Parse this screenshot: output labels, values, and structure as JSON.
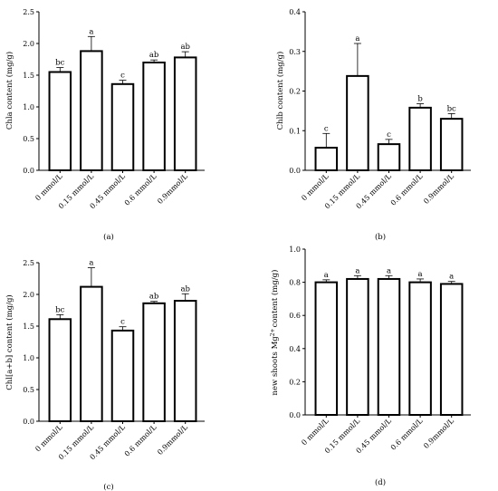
{
  "chart_data": [
    {
      "type": "bar",
      "panel_label": "(a)",
      "ylabel": "Chla content (mg/g)",
      "ylim": [
        0,
        2.5
      ],
      "yticks": [
        "0.0",
        "0.5",
        "1.0",
        "1.5",
        "2.0",
        "2.5"
      ],
      "categories": [
        "0 mmol/L",
        "0.15 mmol/L",
        "0.45 mmol/L",
        "0.6 mmol/L",
        "0.9mmol/L"
      ],
      "values": [
        1.55,
        1.88,
        1.36,
        1.7,
        1.78
      ],
      "errors": [
        0.07,
        0.23,
        0.06,
        0.04,
        0.09
      ],
      "significance": [
        "bc",
        "a",
        "c",
        "ab",
        "ab"
      ]
    },
    {
      "type": "bar",
      "panel_label": "(b)",
      "ylabel": "Chlb content  (mg/g)",
      "ylim": [
        0,
        0.4
      ],
      "yticks": [
        "0.0",
        "0.1",
        "0.2",
        "0.3",
        "0.4"
      ],
      "categories": [
        "0 mmol/L",
        "0.15 mmol/L",
        "0.45 mmol/L",
        "0.6 mmol/L",
        "0.9mmol/L"
      ],
      "values": [
        0.057,
        0.238,
        0.066,
        0.158,
        0.13
      ],
      "errors": [
        0.036,
        0.082,
        0.012,
        0.01,
        0.013
      ],
      "significance": [
        "c",
        "a",
        "c",
        "b",
        "bc"
      ]
    },
    {
      "type": "bar",
      "panel_label": "(c)",
      "ylabel": "Chl[a+b] content  (mg/g)",
      "ylim": [
        0,
        2.5
      ],
      "yticks": [
        "0.0",
        "0.5",
        "1.0",
        "1.5",
        "2.0",
        "2.5"
      ],
      "categories": [
        "0 mmol/L",
        "0.15 mmol/L",
        "0.45 mmol/L",
        "0.6 mmol/L",
        "0.9mmol/L"
      ],
      "values": [
        1.61,
        2.12,
        1.43,
        1.86,
        1.9
      ],
      "errors": [
        0.07,
        0.3,
        0.06,
        0.03,
        0.11
      ],
      "significance": [
        "bc",
        "a",
        "c",
        "ab",
        "ab"
      ]
    },
    {
      "type": "bar",
      "panel_label": "(d)",
      "ylabel_prefix": "new shoots Mg",
      "ylabel_sup": "2+",
      "ylabel_suffix": "content  (mg/g)",
      "ylim": [
        0,
        1.0
      ],
      "yticks": [
        "0.0",
        "0.2",
        "0.4",
        "0.6",
        "0.8",
        "1.0"
      ],
      "categories": [
        "0 mmol/L",
        "0.15 mmol/L",
        "0.45 mmol/L",
        "0.6 mmol/L",
        "0.9mmol/L"
      ],
      "values": [
        0.8,
        0.82,
        0.82,
        0.8,
        0.79
      ],
      "errors": [
        0.015,
        0.02,
        0.02,
        0.02,
        0.015
      ],
      "significance": [
        "a",
        "a",
        "a",
        "a",
        "a"
      ]
    }
  ]
}
